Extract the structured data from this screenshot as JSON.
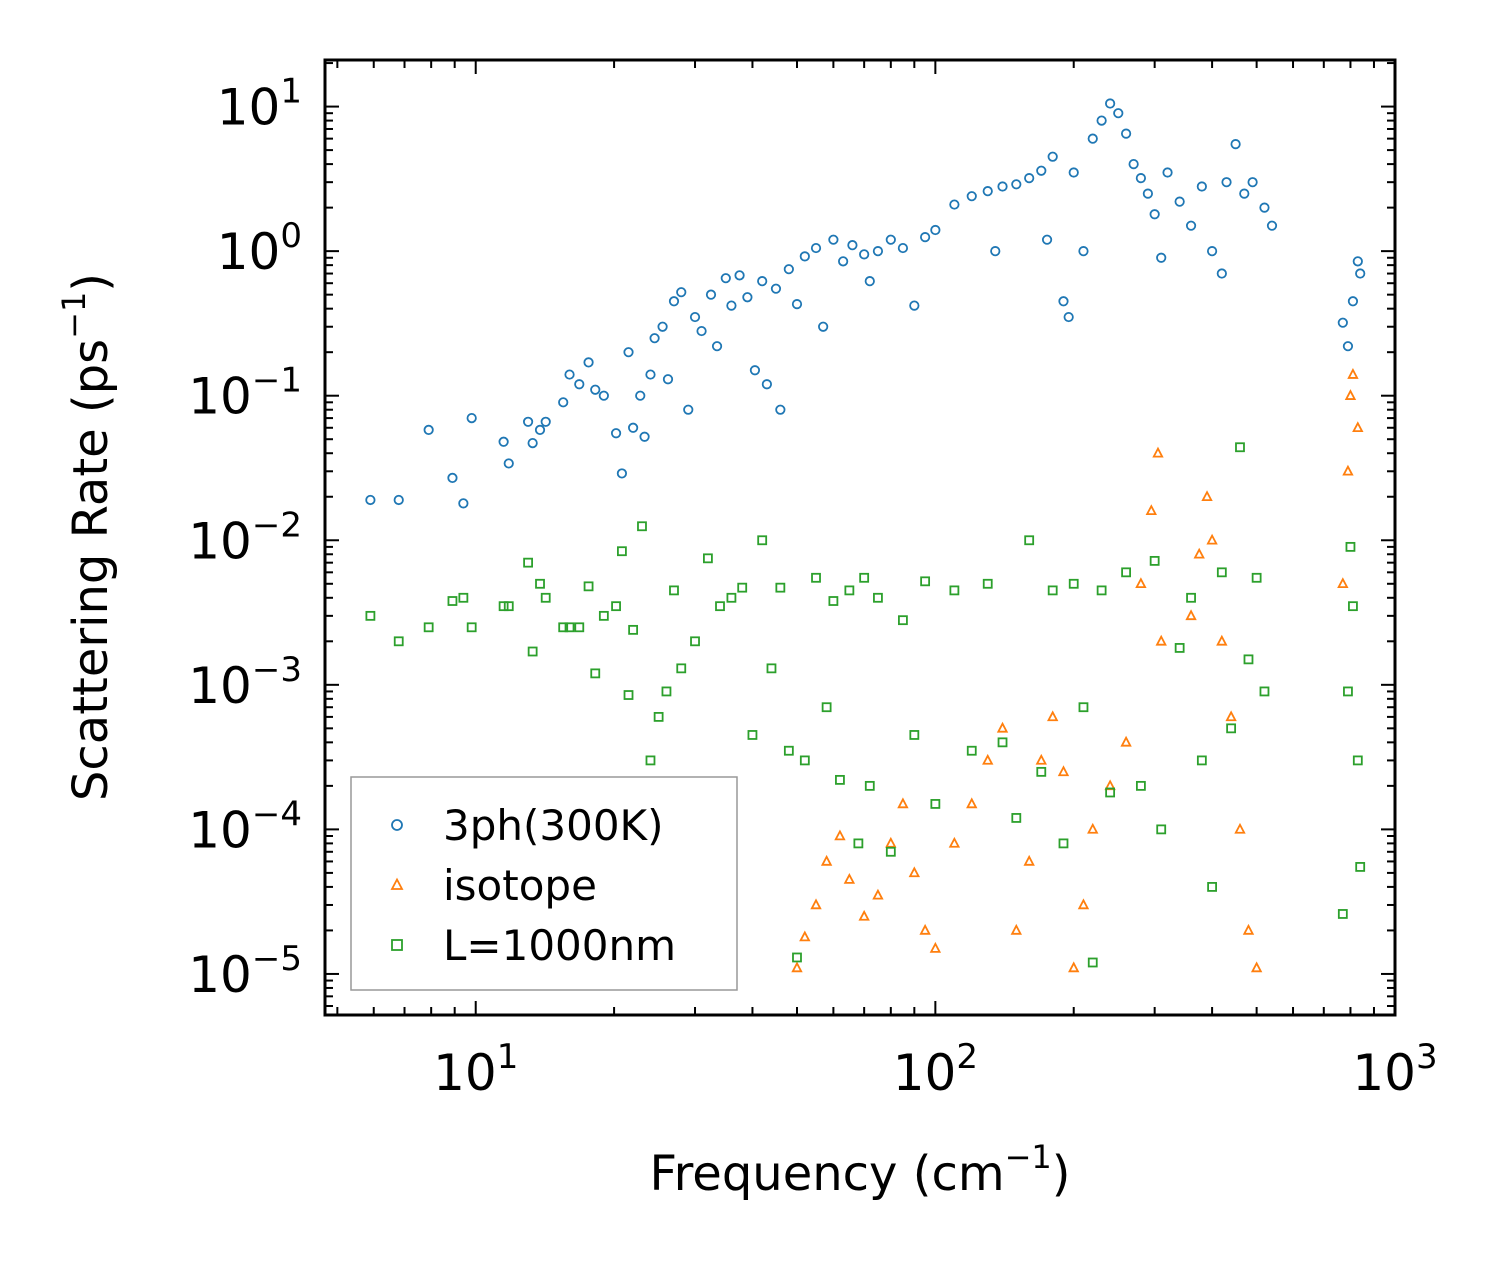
{
  "chart_data": {
    "type": "scatter",
    "xlabel": "Frequency (cm",
    "xlabel_sup": "−1",
    "xlabel_end": ")",
    "ylabel": "Scattering Rate (ps",
    "ylabel_sup": "−1",
    "ylabel_end": ")",
    "xscale": "log",
    "yscale": "log",
    "xlim": [
      4.7,
      1000
    ],
    "ylim": [
      5.2e-06,
      21
    ],
    "x_ticks": [
      {
        "value": 10,
        "base": "10",
        "exp": "1"
      },
      {
        "value": 100,
        "base": "10",
        "exp": "2"
      },
      {
        "value": 1000,
        "base": "10",
        "exp": "3"
      }
    ],
    "y_ticks": [
      {
        "value": 10,
        "base": "10",
        "exp": "1"
      },
      {
        "value": 1,
        "base": "10",
        "exp": "0"
      },
      {
        "value": 0.1,
        "base": "10",
        "exp": "−1"
      },
      {
        "value": 0.01,
        "base": "10",
        "exp": "−2"
      },
      {
        "value": 0.001,
        "base": "10",
        "exp": "−3"
      },
      {
        "value": 0.0001,
        "base": "10",
        "exp": "−4"
      },
      {
        "value": 1e-05,
        "base": "10",
        "exp": "−5"
      }
    ],
    "legend_position": "lower-left",
    "series": [
      {
        "name": "3ph(300K)",
        "marker": "circle",
        "color": "#1f77b4",
        "points": [
          [
            5.9,
            0.019
          ],
          [
            6.8,
            0.019
          ],
          [
            7.9,
            0.058
          ],
          [
            8.9,
            0.027
          ],
          [
            9.4,
            0.018
          ],
          [
            9.8,
            0.07
          ],
          [
            11.5,
            0.048
          ],
          [
            11.8,
            0.034
          ],
          [
            13.0,
            0.066
          ],
          [
            13.3,
            0.047
          ],
          [
            13.8,
            0.058
          ],
          [
            14.2,
            0.066
          ],
          [
            15.5,
            0.09
          ],
          [
            16.0,
            0.14
          ],
          [
            16.8,
            0.12
          ],
          [
            17.6,
            0.17
          ],
          [
            18.2,
            0.11
          ],
          [
            19.0,
            0.1
          ],
          [
            20.2,
            0.055
          ],
          [
            20.8,
            0.029
          ],
          [
            21.5,
            0.2
          ],
          [
            22.0,
            0.06
          ],
          [
            22.8,
            0.1
          ],
          [
            23.3,
            0.052
          ],
          [
            24.0,
            0.14
          ],
          [
            24.5,
            0.25
          ],
          [
            25.5,
            0.3
          ],
          [
            26.2,
            0.13
          ],
          [
            27.0,
            0.45
          ],
          [
            28.0,
            0.52
          ],
          [
            29.0,
            0.08
          ],
          [
            30.0,
            0.35
          ],
          [
            31.0,
            0.28
          ],
          [
            32.5,
            0.5
          ],
          [
            33.5,
            0.22
          ],
          [
            35.0,
            0.65
          ],
          [
            36.0,
            0.42
          ],
          [
            37.5,
            0.68
          ],
          [
            39.0,
            0.48
          ],
          [
            40.5,
            0.15
          ],
          [
            42.0,
            0.62
          ],
          [
            43.0,
            0.12
          ],
          [
            45.0,
            0.55
          ],
          [
            46.0,
            0.08
          ],
          [
            48.0,
            0.75
          ],
          [
            50.0,
            0.43
          ],
          [
            52.0,
            0.92
          ],
          [
            55.0,
            1.05
          ],
          [
            57.0,
            0.3
          ],
          [
            60.0,
            1.2
          ],
          [
            63.0,
            0.85
          ],
          [
            66.0,
            1.1
          ],
          [
            70.0,
            0.95
          ],
          [
            72.0,
            0.62
          ],
          [
            75.0,
            1.0
          ],
          [
            80.0,
            1.2
          ],
          [
            85.0,
            1.05
          ],
          [
            90.0,
            0.42
          ],
          [
            95.0,
            1.25
          ],
          [
            100.0,
            1.4
          ],
          [
            110.0,
            2.1
          ],
          [
            120.0,
            2.4
          ],
          [
            130.0,
            2.6
          ],
          [
            135.0,
            1.0
          ],
          [
            140.0,
            2.8
          ],
          [
            150.0,
            2.9
          ],
          [
            160.0,
            3.2
          ],
          [
            170.0,
            3.6
          ],
          [
            175.0,
            1.2
          ],
          [
            180.0,
            4.5
          ],
          [
            190.0,
            0.45
          ],
          [
            195.0,
            0.35
          ],
          [
            200.0,
            3.5
          ],
          [
            210.0,
            1.0
          ],
          [
            220.0,
            6.0
          ],
          [
            230.0,
            8.0
          ],
          [
            240.0,
            10.5
          ],
          [
            250.0,
            9.0
          ],
          [
            260.0,
            6.5
          ],
          [
            270.0,
            4.0
          ],
          [
            280.0,
            3.2
          ],
          [
            290.0,
            2.5
          ],
          [
            300.0,
            1.8
          ],
          [
            310.0,
            0.9
          ],
          [
            320.0,
            3.5
          ],
          [
            340.0,
            2.2
          ],
          [
            360.0,
            1.5
          ],
          [
            380.0,
            2.8
          ],
          [
            400.0,
            1.0
          ],
          [
            420.0,
            0.7
          ],
          [
            430.0,
            3.0
          ],
          [
            450.0,
            5.5
          ],
          [
            470.0,
            2.5
          ],
          [
            490.0,
            3.0
          ],
          [
            520.0,
            2.0
          ],
          [
            540.0,
            1.5
          ],
          [
            770.0,
            0.32
          ],
          [
            790.0,
            0.22
          ],
          [
            810.0,
            0.45
          ],
          [
            830.0,
            0.85
          ],
          [
            840.0,
            0.7
          ]
        ]
      },
      {
        "name": "isotope",
        "marker": "triangle",
        "color": "#ff7f0e",
        "points": [
          [
            50.0,
            1.1e-05
          ],
          [
            52.0,
            1.8e-05
          ],
          [
            55.0,
            3e-05
          ],
          [
            58.0,
            6e-05
          ],
          [
            62.0,
            9e-05
          ],
          [
            65.0,
            4.5e-05
          ],
          [
            70.0,
            2.5e-05
          ],
          [
            75.0,
            3.5e-05
          ],
          [
            80.0,
            8e-05
          ],
          [
            85.0,
            0.00015
          ],
          [
            90.0,
            5e-05
          ],
          [
            95.0,
            2e-05
          ],
          [
            100.0,
            1.5e-05
          ],
          [
            110.0,
            8e-05
          ],
          [
            120.0,
            0.00015
          ],
          [
            130.0,
            0.0003
          ],
          [
            140.0,
            0.0005
          ],
          [
            150.0,
            2e-05
          ],
          [
            160.0,
            6e-05
          ],
          [
            170.0,
            0.0003
          ],
          [
            180.0,
            0.0006
          ],
          [
            190.0,
            0.00025
          ],
          [
            200.0,
            1.1e-05
          ],
          [
            210.0,
            3e-05
          ],
          [
            220.0,
            0.0001
          ],
          [
            240.0,
            0.0002
          ],
          [
            260.0,
            0.0004
          ],
          [
            280.0,
            0.005
          ],
          [
            295.0,
            0.016
          ],
          [
            305.0,
            0.04
          ],
          [
            310.0,
            0.002
          ],
          [
            360.0,
            0.003
          ],
          [
            375.0,
            0.008
          ],
          [
            390.0,
            0.02
          ],
          [
            400.0,
            0.01
          ],
          [
            420.0,
            0.002
          ],
          [
            440.0,
            0.0006
          ],
          [
            460.0,
            0.0001
          ],
          [
            480.0,
            2e-05
          ],
          [
            500.0,
            1.1e-05
          ],
          [
            770.0,
            0.005
          ],
          [
            790.0,
            0.03
          ],
          [
            800.0,
            0.1
          ],
          [
            810.0,
            0.14
          ],
          [
            830.0,
            0.06
          ]
        ]
      },
      {
        "name": "L=1000nm",
        "marker": "square",
        "color": "#2ca02c",
        "points": [
          [
            5.9,
            0.003
          ],
          [
            6.8,
            0.002
          ],
          [
            7.9,
            0.0025
          ],
          [
            8.9,
            0.0038
          ],
          [
            9.4,
            0.004
          ],
          [
            9.8,
            0.0025
          ],
          [
            11.5,
            0.0035
          ],
          [
            11.8,
            0.0035
          ],
          [
            13.0,
            0.007
          ],
          [
            13.3,
            0.0017
          ],
          [
            13.8,
            0.005
          ],
          [
            14.2,
            0.004
          ],
          [
            15.5,
            0.0025
          ],
          [
            16.0,
            0.0025
          ],
          [
            16.8,
            0.0025
          ],
          [
            17.6,
            0.0048
          ],
          [
            18.2,
            0.0012
          ],
          [
            19.0,
            0.003
          ],
          [
            20.2,
            0.0035
          ],
          [
            20.8,
            0.0084
          ],
          [
            21.5,
            0.00085
          ],
          [
            22.0,
            0.0024
          ],
          [
            23.0,
            0.0125
          ],
          [
            24.0,
            0.0003
          ],
          [
            25.0,
            0.0006
          ],
          [
            26.0,
            0.0009
          ],
          [
            27.0,
            0.0045
          ],
          [
            28.0,
            0.0013
          ],
          [
            30.0,
            0.002
          ],
          [
            32.0,
            0.0075
          ],
          [
            34.0,
            0.0035
          ],
          [
            36.0,
            0.004
          ],
          [
            38.0,
            0.0047
          ],
          [
            40.0,
            0.00045
          ],
          [
            42.0,
            0.01
          ],
          [
            44.0,
            0.0013
          ],
          [
            46.0,
            0.0047
          ],
          [
            48.0,
            0.00035
          ],
          [
            50.0,
            1.3e-05
          ],
          [
            52.0,
            0.0003
          ],
          [
            55.0,
            0.0055
          ],
          [
            58.0,
            0.0007
          ],
          [
            60.0,
            0.0038
          ],
          [
            62.0,
            0.00022
          ],
          [
            65.0,
            0.0045
          ],
          [
            68.0,
            8e-05
          ],
          [
            70.0,
            0.0055
          ],
          [
            72.0,
            0.0002
          ],
          [
            75.0,
            0.004
          ],
          [
            80.0,
            7e-05
          ],
          [
            85.0,
            0.0028
          ],
          [
            90.0,
            0.00045
          ],
          [
            95.0,
            0.0052
          ],
          [
            100.0,
            0.00015
          ],
          [
            110.0,
            0.0045
          ],
          [
            120.0,
            0.00035
          ],
          [
            130.0,
            0.005
          ],
          [
            140.0,
            0.0004
          ],
          [
            150.0,
            0.00012
          ],
          [
            160.0,
            0.01
          ],
          [
            170.0,
            0.00025
          ],
          [
            180.0,
            0.0045
          ],
          [
            190.0,
            8e-05
          ],
          [
            200.0,
            0.005
          ],
          [
            210.0,
            0.0007
          ],
          [
            220.0,
            1.2e-05
          ],
          [
            230.0,
            0.0045
          ],
          [
            240.0,
            0.00018
          ],
          [
            260.0,
            0.006
          ],
          [
            280.0,
            0.0002
          ],
          [
            300.0,
            0.0072
          ],
          [
            310.0,
            0.0001
          ],
          [
            340.0,
            0.0018
          ],
          [
            360.0,
            0.004
          ],
          [
            380.0,
            0.0003
          ],
          [
            400.0,
            4e-05
          ],
          [
            420.0,
            0.006
          ],
          [
            440.0,
            0.0005
          ],
          [
            460.0,
            0.044
          ],
          [
            480.0,
            0.0015
          ],
          [
            500.0,
            0.0055
          ],
          [
            520.0,
            0.0009
          ],
          [
            770.0,
            2.6e-05
          ],
          [
            790.0,
            0.0009
          ],
          [
            800.0,
            0.009
          ],
          [
            810.0,
            0.0035
          ],
          [
            830.0,
            0.0003
          ],
          [
            840.0,
            5.5e-05
          ]
        ]
      }
    ]
  }
}
